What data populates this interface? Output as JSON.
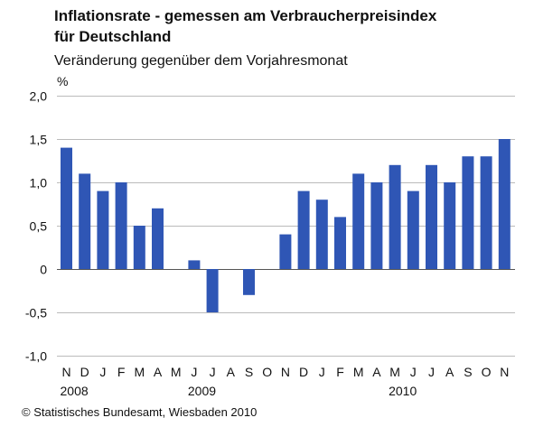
{
  "title_line1": "Inflationsrate - gemessen am Verbraucherpreisindex",
  "title_line2": "für Deutschland",
  "subtitle": "Veränderung gegenüber dem Vorjahresmonat",
  "unit": "%",
  "source": "© Statistisches Bundesamt, Wiesbaden 2010",
  "colors": {
    "bar": "#2f56b5",
    "grid": "#bbbbbb",
    "zero_line": "#555555"
  },
  "chart_data": {
    "type": "bar",
    "title": "Inflationsrate - gemessen am Verbraucherpreisindex für Deutschland",
    "subtitle": "Veränderung gegenüber dem Vorjahresmonat",
    "ylabel": "%",
    "categories": [
      "N",
      "D",
      "J",
      "F",
      "M",
      "A",
      "M",
      "J",
      "J",
      "A",
      "S",
      "O",
      "N",
      "D",
      "J",
      "F",
      "M",
      "A",
      "M",
      "J",
      "J",
      "A",
      "S",
      "O",
      "N"
    ],
    "year_labels": [
      {
        "label": "2008",
        "category_index": 0
      },
      {
        "label": "2009",
        "category_index": 7
      },
      {
        "label": "2010",
        "category_index": 18
      }
    ],
    "values": [
      1.4,
      1.1,
      0.9,
      1.0,
      0.5,
      0.7,
      0.0,
      0.1,
      -0.5,
      0.0,
      -0.3,
      0.0,
      0.4,
      0.9,
      0.8,
      0.6,
      1.1,
      1.0,
      1.2,
      0.9,
      1.2,
      1.0,
      1.3,
      1.3,
      1.5
    ],
    "ylim": [
      -1.0,
      2.0
    ],
    "yticks": [
      2.0,
      1.5,
      1.0,
      0.5,
      0,
      -0.5,
      -1.0
    ],
    "ytick_labels": [
      "2,0",
      "1,5",
      "1,0",
      "0,5",
      "0",
      "-0,5",
      "-1,0"
    ],
    "grid": true,
    "legend": "none"
  }
}
